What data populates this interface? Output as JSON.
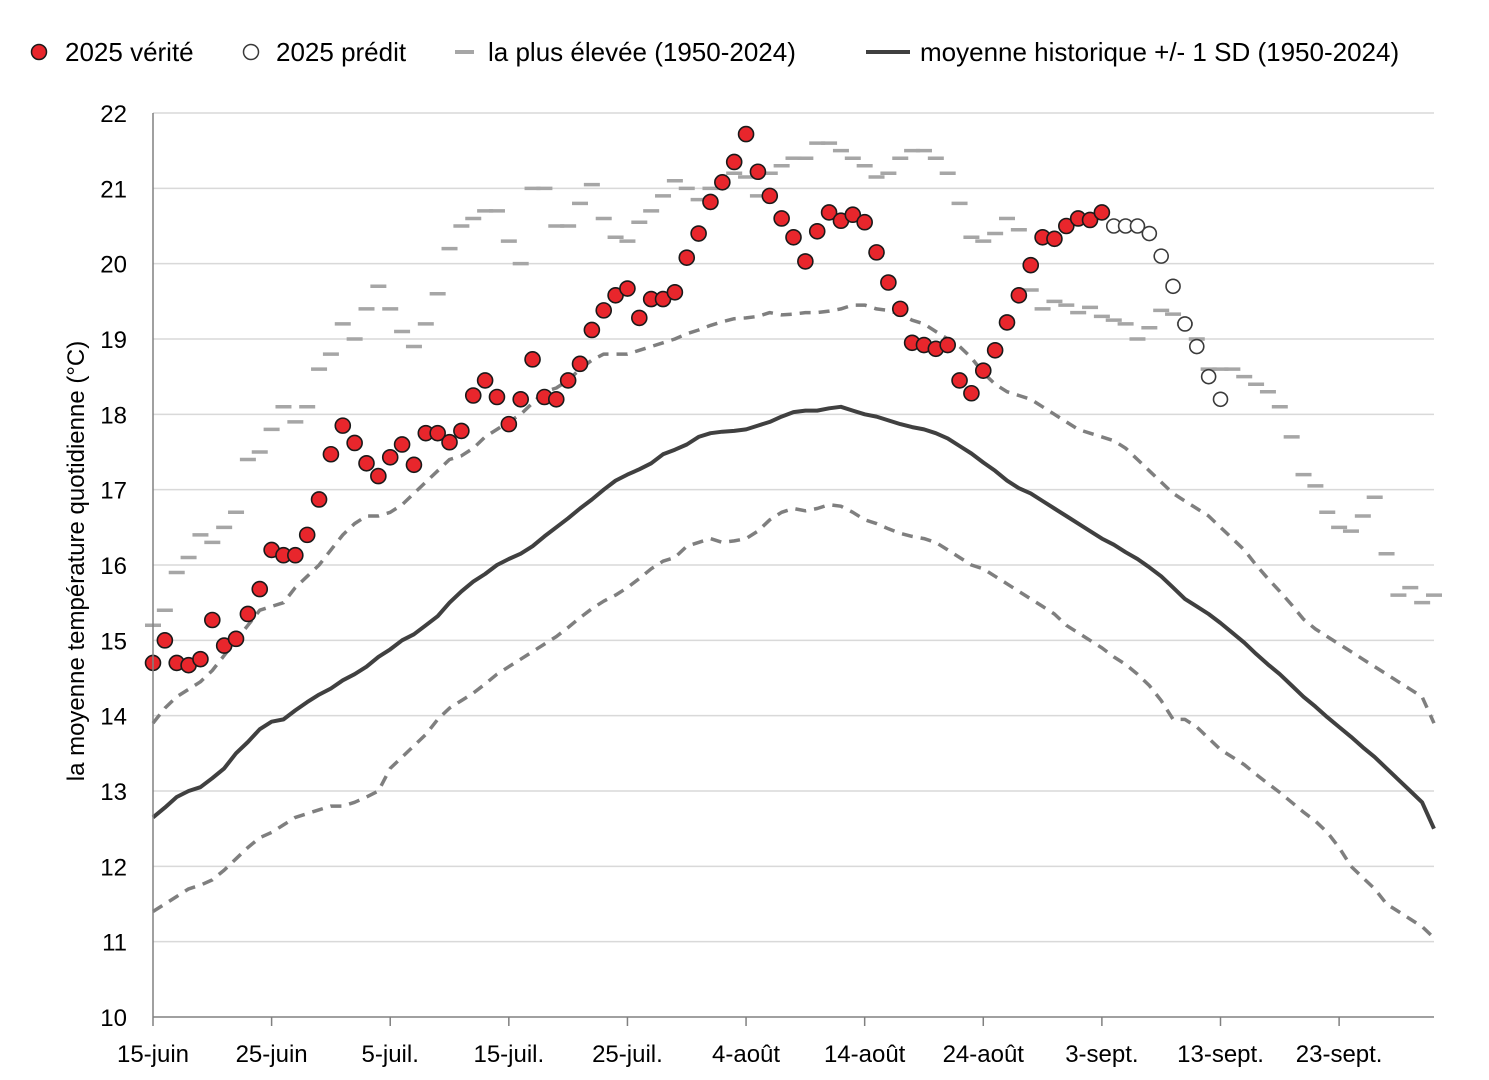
{
  "chart_data": {
    "type": "line",
    "title": "",
    "xlabel": "",
    "ylabel": "la moyenne température quotidienne (°C)",
    "ylim": [
      10,
      22
    ],
    "yticks": [
      10,
      11,
      12,
      13,
      14,
      15,
      16,
      17,
      18,
      19,
      20,
      21,
      22
    ],
    "grid": true,
    "legend_position": "top",
    "x_start_label": "15-juin",
    "x_day_range": [
      0,
      108
    ],
    "xticks": [
      {
        "day": 0,
        "label": "15-juin"
      },
      {
        "day": 10,
        "label": "25-juin"
      },
      {
        "day": 20,
        "label": "5-juil."
      },
      {
        "day": 30,
        "label": "15-juil."
      },
      {
        "day": 40,
        "label": "25-juil."
      },
      {
        "day": 50,
        "label": "4-août"
      },
      {
        "day": 60,
        "label": "14-août"
      },
      {
        "day": 70,
        "label": "24-août"
      },
      {
        "day": 80,
        "label": "3-sept."
      },
      {
        "day": 90,
        "label": "13-sept."
      },
      {
        "day": 100,
        "label": "23-sept."
      }
    ],
    "legend": [
      {
        "key": "actual",
        "label": "2025 vérité"
      },
      {
        "key": "predicted",
        "label": "2025 prédit"
      },
      {
        "key": "highest",
        "label": "la plus élevée (1950-2024)"
      },
      {
        "key": "mean",
        "label": "moyenne historique +/- 1 SD (1950-2024)"
      }
    ],
    "colors": {
      "actual_fill": "#e8262c",
      "actual_edge": "#1a1a1a",
      "predicted_edge": "#3a3a3a",
      "highest": "#a6a6a6",
      "mean": "#404040",
      "sd": "#7f7f7f",
      "grid": "#d9d9d9",
      "axis": "#808080"
    },
    "series": [
      {
        "name": "2025 vérité",
        "key": "actual",
        "start_day": 0,
        "values": [
          14.7,
          15.0,
          14.7,
          14.67,
          14.75,
          15.27,
          14.93,
          15.02,
          15.35,
          15.68,
          16.2,
          16.13,
          16.13,
          16.4,
          16.87,
          17.47,
          17.85,
          17.62,
          17.35,
          17.18,
          17.43,
          17.6,
          17.33,
          17.75,
          17.75,
          17.63,
          17.78,
          18.25,
          18.45,
          18.23,
          17.87,
          18.2,
          18.73,
          18.23,
          18.2,
          18.45,
          18.67,
          19.12,
          19.38,
          19.58,
          19.67,
          19.28,
          19.53,
          19.53,
          19.62,
          20.08,
          20.4,
          20.82,
          21.08,
          21.35,
          21.72,
          21.22,
          20.9,
          20.6,
          20.35,
          20.03,
          20.43,
          20.68,
          20.57,
          20.65,
          20.55,
          20.15,
          19.75,
          19.4,
          18.95,
          18.92,
          18.87,
          18.92,
          18.45,
          18.28,
          18.58,
          18.85,
          19.22,
          19.58,
          19.98,
          20.35,
          20.33,
          20.5,
          20.6,
          20.58,
          20.68
        ]
      },
      {
        "name": "2025 prédit",
        "key": "predicted",
        "start_day": 81,
        "values": [
          20.5,
          20.5,
          20.5,
          20.4,
          20.1,
          19.7,
          19.2,
          18.9,
          18.5,
          18.2
        ]
      },
      {
        "name": "la plus élevée (1950-2024)",
        "key": "highest",
        "start_day": 0,
        "values": [
          15.2,
          15.4,
          15.9,
          16.1,
          16.4,
          16.3,
          16.5,
          16.7,
          17.4,
          17.5,
          17.8,
          18.1,
          17.9,
          18.1,
          18.6,
          18.8,
          19.2,
          19.0,
          19.4,
          19.7,
          19.4,
          19.1,
          18.9,
          19.2,
          19.6,
          20.2,
          20.5,
          20.6,
          20.7,
          20.7,
          20.3,
          20.0,
          21.0,
          21.0,
          20.5,
          20.5,
          20.8,
          21.05,
          20.6,
          20.35,
          20.3,
          20.55,
          20.7,
          20.9,
          21.1,
          21.0,
          20.85,
          21.0,
          21.1,
          21.2,
          21.15,
          20.9,
          21.2,
          21.3,
          21.4,
          21.4,
          21.6,
          21.6,
          21.5,
          21.4,
          21.3,
          21.15,
          21.2,
          21.4,
          21.5,
          21.5,
          21.4,
          21.2,
          20.8,
          20.35,
          20.3,
          20.4,
          20.6,
          20.45,
          19.65,
          19.4,
          19.5,
          19.45,
          19.35,
          19.42,
          19.3,
          19.25,
          19.2,
          19.0,
          19.15,
          19.38,
          19.33,
          19.2,
          19.0,
          18.6,
          18.6,
          18.6,
          18.5,
          18.4,
          18.3,
          18.1,
          17.7,
          17.2,
          17.05,
          16.7,
          16.5,
          16.45,
          16.65,
          16.9,
          16.15,
          15.6,
          15.7,
          15.5,
          15.6
        ]
      },
      {
        "name": "moyenne historique",
        "key": "mean",
        "start_day": 0,
        "values": [
          12.65,
          12.78,
          12.92,
          13.0,
          13.05,
          13.17,
          13.3,
          13.5,
          13.65,
          13.82,
          13.92,
          13.95,
          14.07,
          14.18,
          14.28,
          14.36,
          14.47,
          14.55,
          14.65,
          14.78,
          14.88,
          15.0,
          15.08,
          15.2,
          15.32,
          15.5,
          15.65,
          15.78,
          15.88,
          16.0,
          16.08,
          16.15,
          16.25,
          16.38,
          16.5,
          16.62,
          16.75,
          16.87,
          17.0,
          17.12,
          17.2,
          17.27,
          17.35,
          17.47,
          17.53,
          17.6,
          17.7,
          17.75,
          17.77,
          17.78,
          17.8,
          17.85,
          17.9,
          17.97,
          18.03,
          18.05,
          18.05,
          18.08,
          18.1,
          18.05,
          18.0,
          17.97,
          17.92,
          17.87,
          17.83,
          17.8,
          17.75,
          17.68,
          17.58,
          17.48,
          17.36,
          17.25,
          17.12,
          17.02,
          16.95,
          16.85,
          16.75,
          16.65,
          16.55,
          16.45,
          16.35,
          16.27,
          16.17,
          16.08,
          15.97,
          15.85,
          15.7,
          15.55,
          15.45,
          15.35,
          15.23,
          15.1,
          14.97,
          14.82,
          14.68,
          14.55,
          14.4,
          14.25,
          14.12,
          13.98,
          13.85,
          13.72,
          13.58,
          13.45,
          13.3,
          13.15,
          13.0,
          12.85,
          12.5
        ]
      },
      {
        "name": "+1 SD",
        "key": "sd_upper",
        "start_day": 0,
        "values": [
          13.9,
          14.1,
          14.25,
          14.35,
          14.45,
          14.6,
          14.8,
          15.0,
          15.2,
          15.4,
          15.45,
          15.5,
          15.7,
          15.85,
          16.0,
          16.2,
          16.4,
          16.55,
          16.65,
          16.65,
          16.7,
          16.8,
          16.95,
          17.1,
          17.25,
          17.4,
          17.45,
          17.55,
          17.7,
          17.8,
          17.9,
          18.0,
          18.15,
          18.3,
          18.35,
          18.45,
          18.6,
          18.72,
          18.8,
          18.8,
          18.8,
          18.85,
          18.9,
          18.95,
          19.0,
          19.07,
          19.12,
          19.18,
          19.23,
          19.27,
          19.28,
          19.3,
          19.35,
          19.32,
          19.33,
          19.35,
          19.35,
          19.37,
          19.4,
          19.45,
          19.45,
          19.4,
          19.38,
          19.33,
          19.25,
          19.2,
          19.1,
          19.0,
          18.9,
          18.75,
          18.55,
          18.4,
          18.3,
          18.25,
          18.2,
          18.1,
          18.0,
          17.9,
          17.8,
          17.75,
          17.7,
          17.65,
          17.55,
          17.4,
          17.25,
          17.1,
          16.95,
          16.85,
          16.75,
          16.65,
          16.5,
          16.35,
          16.2,
          16.0,
          15.82,
          15.65,
          15.47,
          15.28,
          15.15,
          15.05,
          14.95,
          14.85,
          14.75,
          14.65,
          14.55,
          14.45,
          14.35,
          14.25,
          13.9
        ]
      },
      {
        "name": "-1 SD",
        "key": "sd_lower",
        "start_day": 0,
        "values": [
          11.4,
          11.5,
          11.6,
          11.7,
          11.75,
          11.82,
          11.95,
          12.1,
          12.25,
          12.38,
          12.45,
          12.55,
          12.65,
          12.7,
          12.75,
          12.8,
          12.8,
          12.85,
          12.92,
          13.0,
          13.3,
          13.45,
          13.6,
          13.75,
          13.95,
          14.1,
          14.2,
          14.3,
          14.42,
          14.55,
          14.65,
          14.75,
          14.85,
          14.95,
          15.05,
          15.17,
          15.3,
          15.42,
          15.52,
          15.6,
          15.7,
          15.82,
          15.95,
          16.05,
          16.1,
          16.25,
          16.3,
          16.35,
          16.3,
          16.32,
          16.35,
          16.45,
          16.6,
          16.7,
          16.75,
          16.72,
          16.75,
          16.8,
          16.78,
          16.7,
          16.6,
          16.55,
          16.48,
          16.42,
          16.38,
          16.35,
          16.3,
          16.2,
          16.1,
          16.0,
          15.95,
          15.85,
          15.75,
          15.65,
          15.55,
          15.45,
          15.35,
          15.2,
          15.1,
          15.0,
          14.9,
          14.78,
          14.68,
          14.55,
          14.4,
          14.2,
          13.95,
          13.95,
          13.85,
          13.7,
          13.55,
          13.45,
          13.35,
          13.22,
          13.1,
          12.98,
          12.85,
          12.72,
          12.6,
          12.45,
          12.25,
          12.0,
          11.85,
          11.7,
          11.5,
          11.4,
          11.3,
          11.2,
          11.05
        ]
      }
    ]
  }
}
